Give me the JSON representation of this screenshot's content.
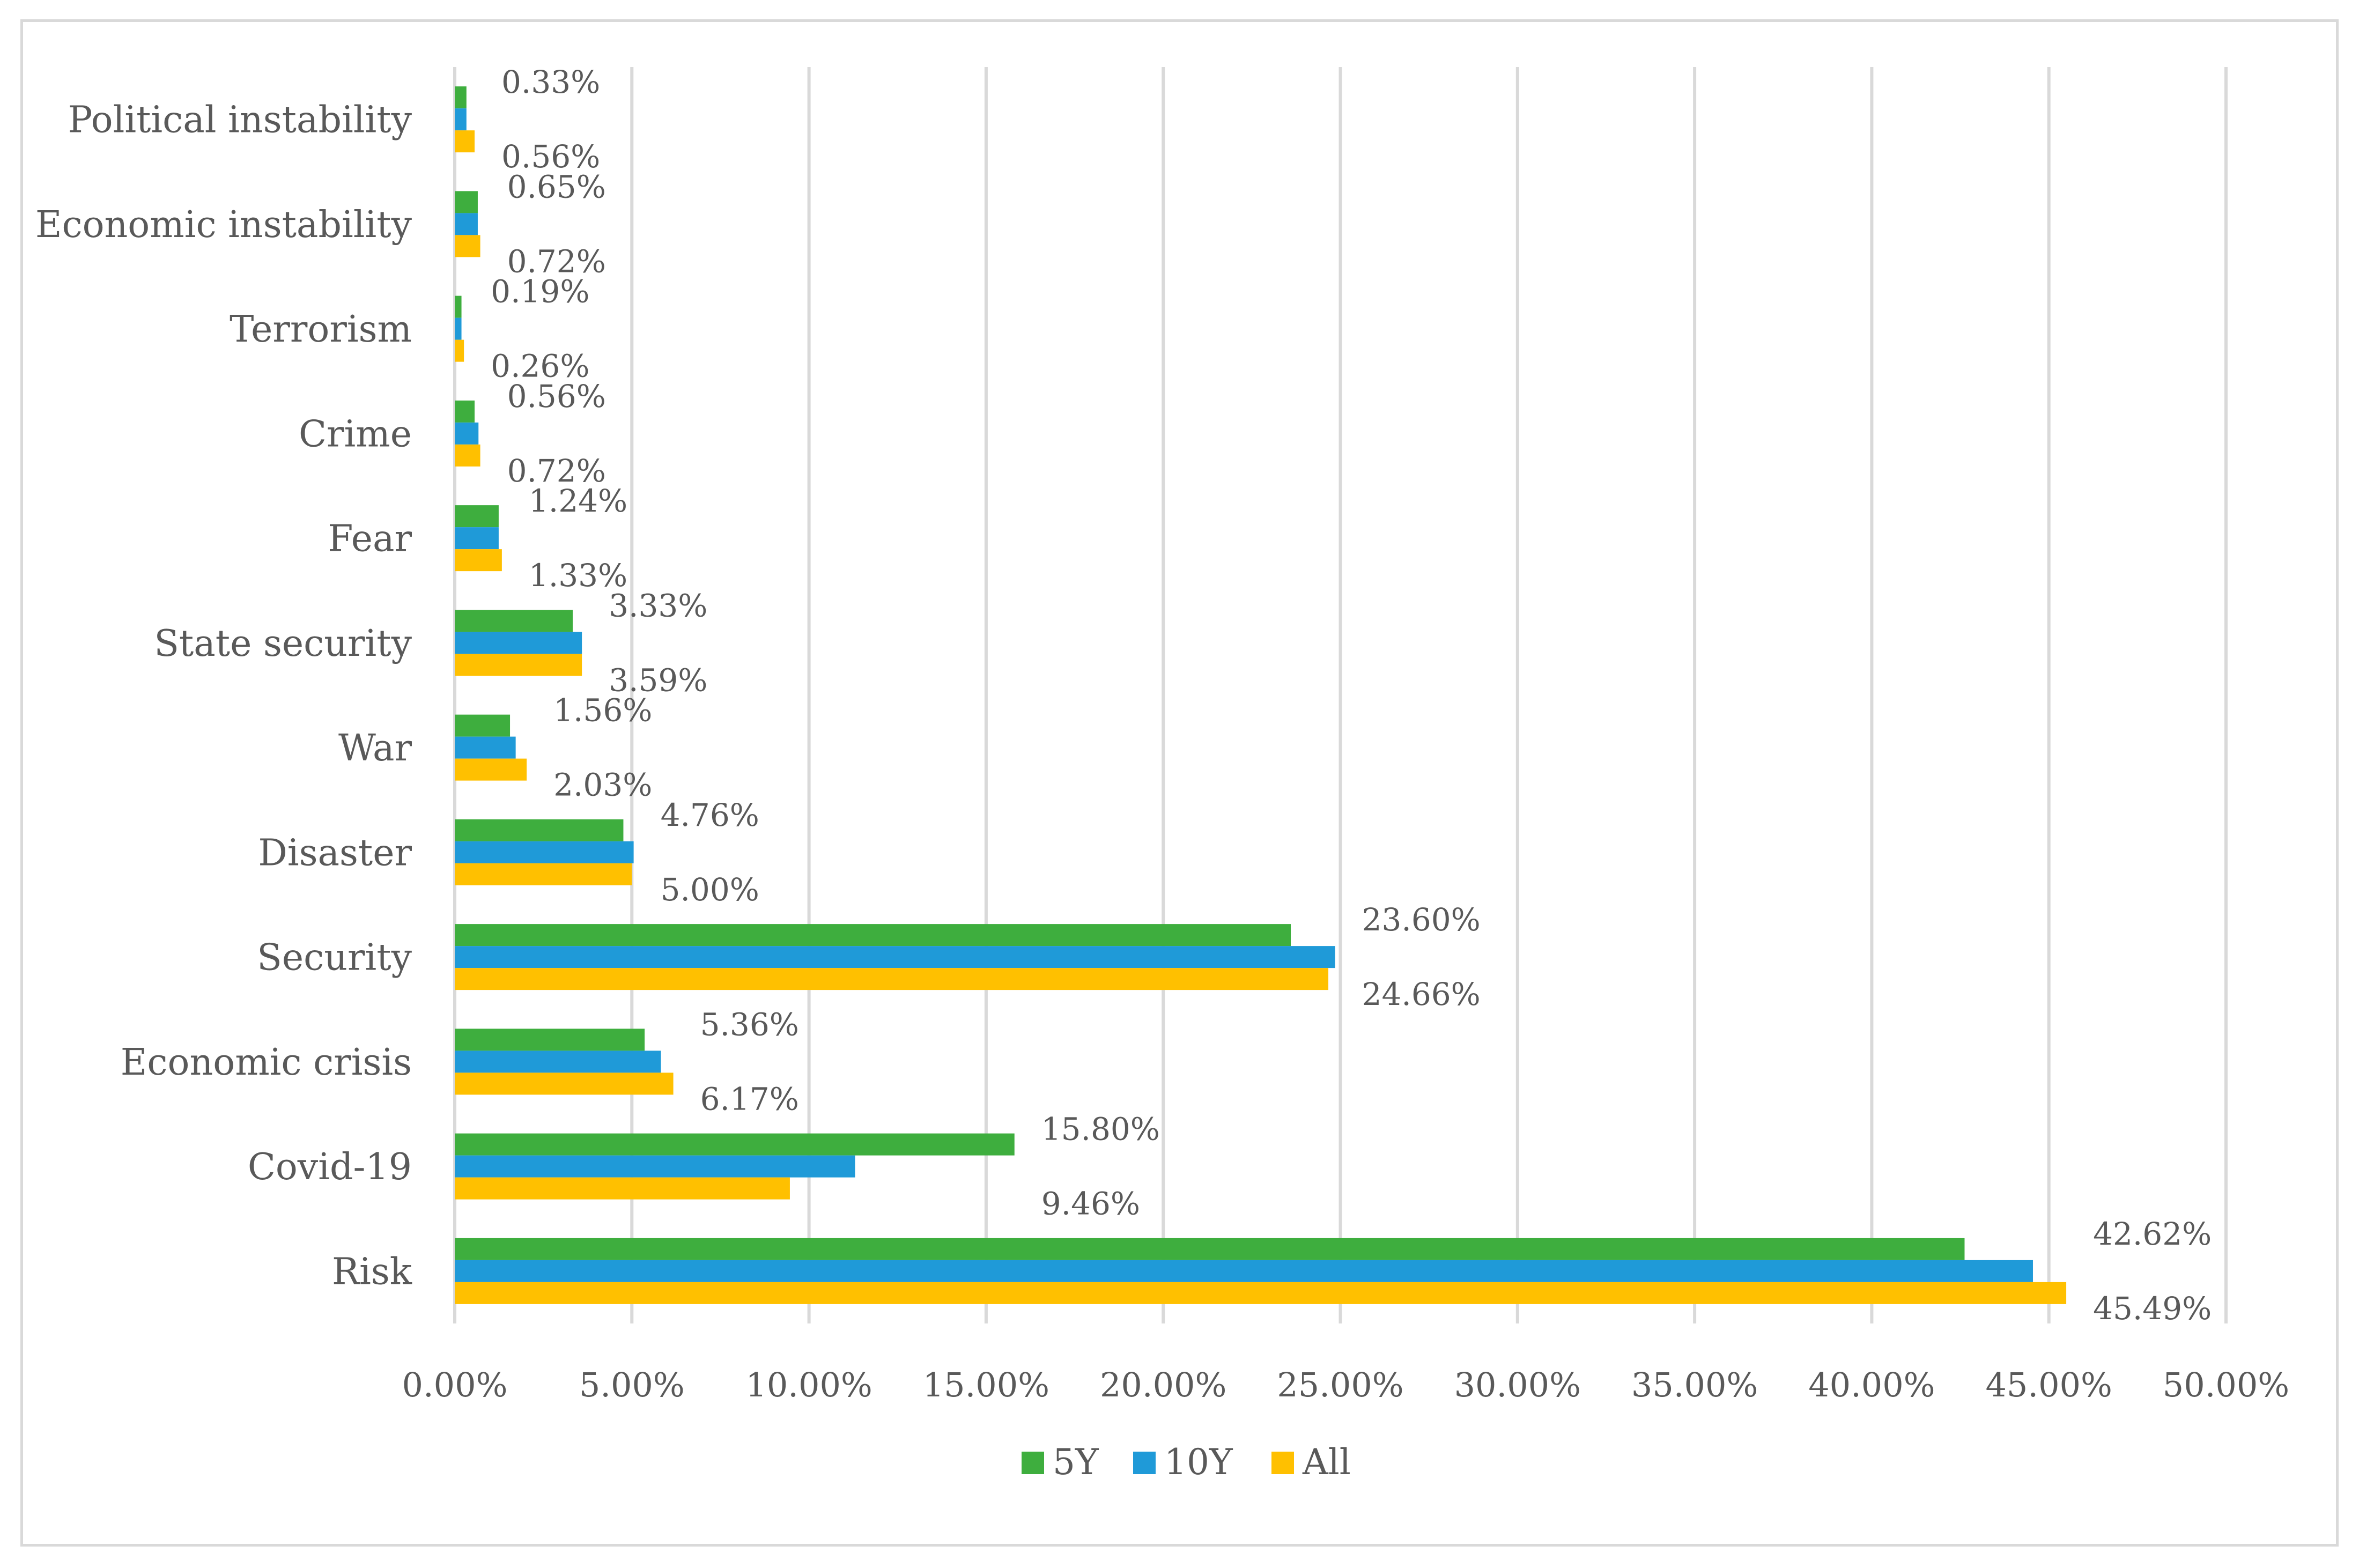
{
  "chart_data": {
    "type": "bar",
    "orientation": "horizontal",
    "title": "",
    "xlabel": "",
    "ylabel": "",
    "xlim": [
      0,
      50
    ],
    "grid": true,
    "legend_position": "bottom",
    "categories": [
      "Political instability",
      "Economic instability",
      "Terrorism",
      "Crime",
      "Fear",
      "State security",
      "War",
      "Disaster",
      "Security",
      "Economic crisis",
      "Covid-19",
      "Risk"
    ],
    "ticks": [
      "0.00%",
      "5.00%",
      "10.00%",
      "15.00%",
      "20.00%",
      "25.00%",
      "30.00%",
      "35.00%",
      "40.00%",
      "45.00%",
      "50.00%"
    ],
    "series": [
      {
        "name": "5Y",
        "color": "#3eae3e",
        "values": [
          0.33,
          0.65,
          0.19,
          0.56,
          1.24,
          3.33,
          1.56,
          4.76,
          23.6,
          5.36,
          15.8,
          42.62
        ],
        "labels": [
          "0.33%",
          "0.65%",
          "0.19%",
          "0.56%",
          "1.24%",
          "3.33%",
          "1.56%",
          "4.76%",
          "23.60%",
          "5.36%",
          "15.80%",
          "42.62%"
        ]
      },
      {
        "name": "10Y",
        "color": "#1f9ad8",
        "values": [
          0.33,
          0.65,
          0.19,
          0.67,
          1.24,
          3.59,
          1.72,
          5.05,
          24.85,
          5.82,
          11.3,
          44.55
        ],
        "labels": []
      },
      {
        "name": "All",
        "color": "#ffc000",
        "values": [
          0.56,
          0.72,
          0.26,
          0.72,
          1.33,
          3.59,
          2.03,
          5.0,
          24.66,
          6.17,
          9.46,
          45.49
        ],
        "labels": [
          "0.56%",
          "0.72%",
          "0.26%",
          "0.72%",
          "1.33%",
          "3.59%",
          "2.03%",
          "5.00%",
          "24.66%",
          "6.17%",
          "9.46%",
          "45.49%"
        ]
      }
    ]
  }
}
